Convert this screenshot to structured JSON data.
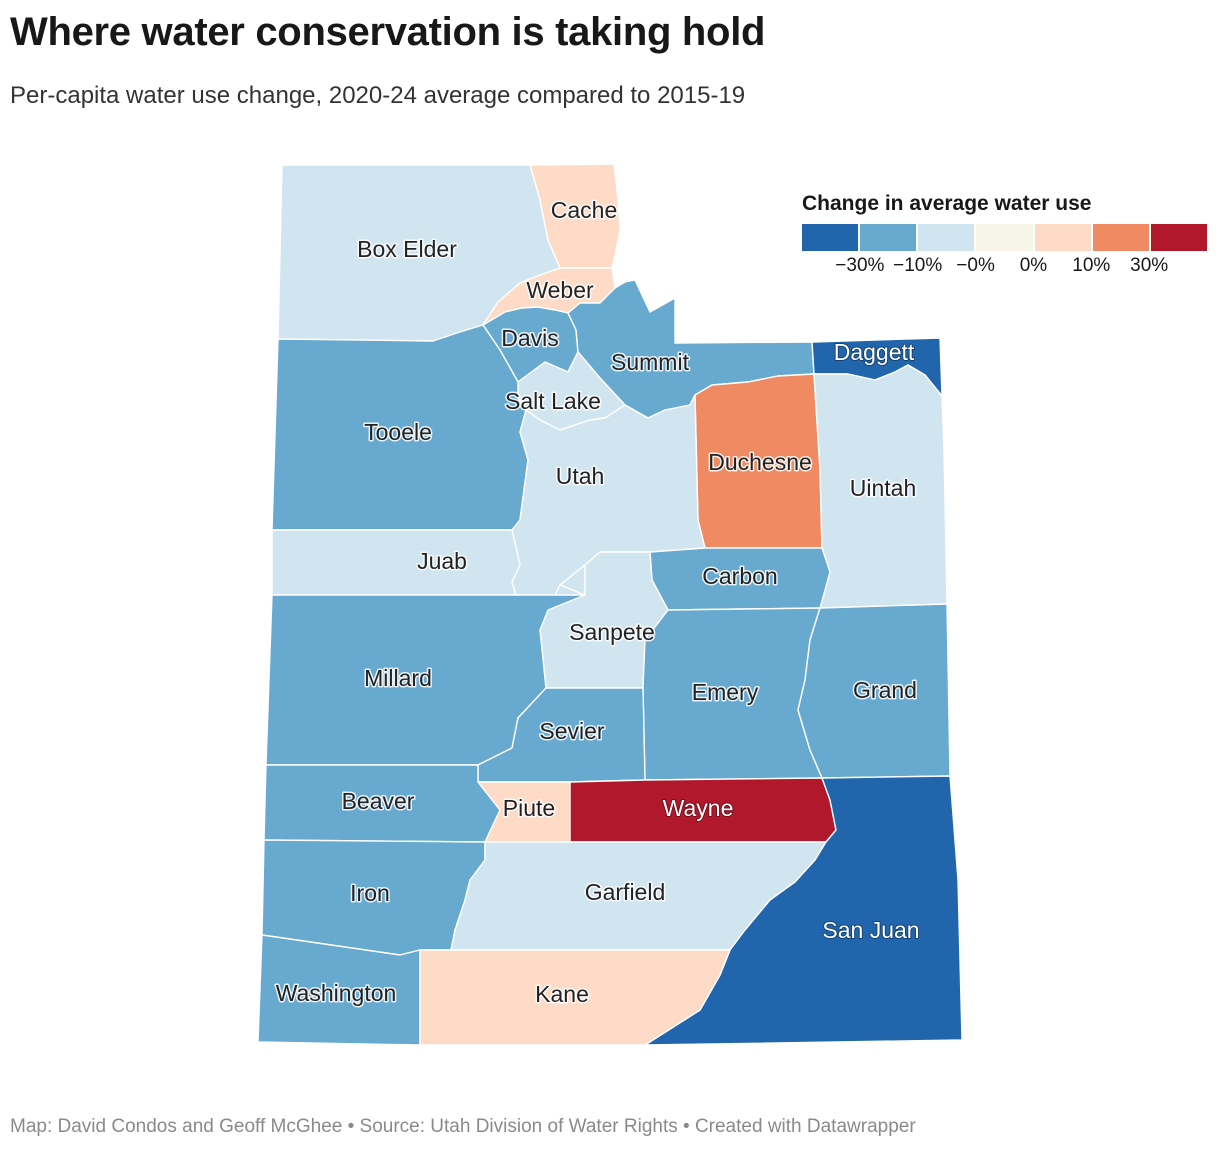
{
  "title": "Where water conservation is taking hold",
  "subtitle": "Per-capita water use change, 2020-24 average compared to 2015-19",
  "legend": {
    "title": "Change in average water use",
    "bins": [
      {
        "color": "#2166ac"
      },
      {
        "color": "#67a9cf"
      },
      {
        "color": "#d1e5f0"
      },
      {
        "color": "#f7f4e8"
      },
      {
        "color": "#fddbc7"
      },
      {
        "color": "#ef8a62"
      },
      {
        "color": "#b2182b"
      }
    ],
    "ticks": [
      "−30%",
      "−10%",
      "−0%",
      "0%",
      "10%",
      "30%"
    ]
  },
  "counties": [
    {
      "name": "Box Elder",
      "color": "#d1e5f0"
    },
    {
      "name": "Cache",
      "color": "#fddbc7"
    },
    {
      "name": "Weber",
      "color": "#fddbc7"
    },
    {
      "name": "Davis",
      "color": "#67a9cf"
    },
    {
      "name": "Summit",
      "color": "#67a9cf"
    },
    {
      "name": "Daggett",
      "color": "#2166ac"
    },
    {
      "name": "Salt Lake",
      "color": "#d1e5f0"
    },
    {
      "name": "Tooele",
      "color": "#67a9cf"
    },
    {
      "name": "Duchesne",
      "color": "#ef8a62"
    },
    {
      "name": "Uintah",
      "color": "#d1e5f0"
    },
    {
      "name": "Utah",
      "color": "#d1e5f0"
    },
    {
      "name": "Juab",
      "color": "#d1e5f0"
    },
    {
      "name": "Carbon",
      "color": "#67a9cf"
    },
    {
      "name": "Sanpete",
      "color": "#d1e5f0"
    },
    {
      "name": "Millard",
      "color": "#67a9cf"
    },
    {
      "name": "Emery",
      "color": "#67a9cf"
    },
    {
      "name": "Grand",
      "color": "#67a9cf"
    },
    {
      "name": "Sevier",
      "color": "#67a9cf"
    },
    {
      "name": "Beaver",
      "color": "#67a9cf"
    },
    {
      "name": "Piute",
      "color": "#fddbc7"
    },
    {
      "name": "Wayne",
      "color": "#b2182b"
    },
    {
      "name": "Iron",
      "color": "#67a9cf"
    },
    {
      "name": "Garfield",
      "color": "#d1e5f0"
    },
    {
      "name": "San Juan",
      "color": "#2166ac"
    },
    {
      "name": "Washington",
      "color": "#67a9cf"
    },
    {
      "name": "Kane",
      "color": "#fddbc7"
    }
  ],
  "footer": "Map: David Condos and Geoff McGhee • Source: Utah Division of Water Rights • Created with Datawrapper"
}
